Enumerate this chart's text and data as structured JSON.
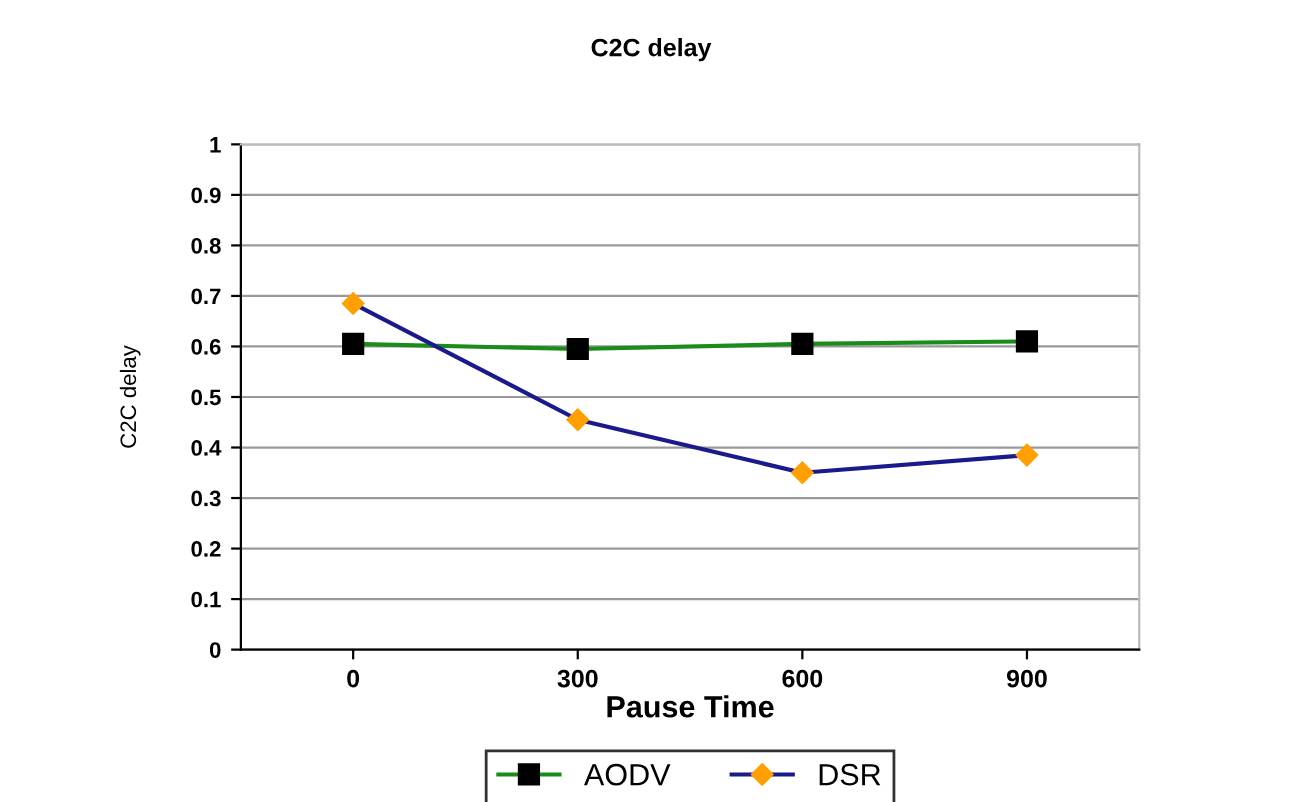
{
  "chart_data": {
    "type": "line",
    "title": "C2C delay",
    "xlabel": "Pause Time",
    "ylabel": "C2C delay",
    "categories": [
      "0",
      "300",
      "600",
      "900"
    ],
    "series": [
      {
        "name": "AODV",
        "color": "#1a8c1a",
        "marker": "square",
        "values": [
          0.605,
          0.595,
          0.605,
          0.61
        ]
      },
      {
        "name": "DSR",
        "color": "#1a1a8c",
        "marker": "diamond",
        "values": [
          0.685,
          0.455,
          0.35,
          0.385
        ]
      }
    ],
    "ylim": [
      0,
      1
    ],
    "yticks": [
      0,
      0.1,
      0.2,
      0.3,
      0.4,
      0.5,
      0.6,
      0.7,
      0.8,
      0.9,
      1
    ],
    "grid": "y",
    "legend": "bottom",
    "line_style": "solid"
  }
}
